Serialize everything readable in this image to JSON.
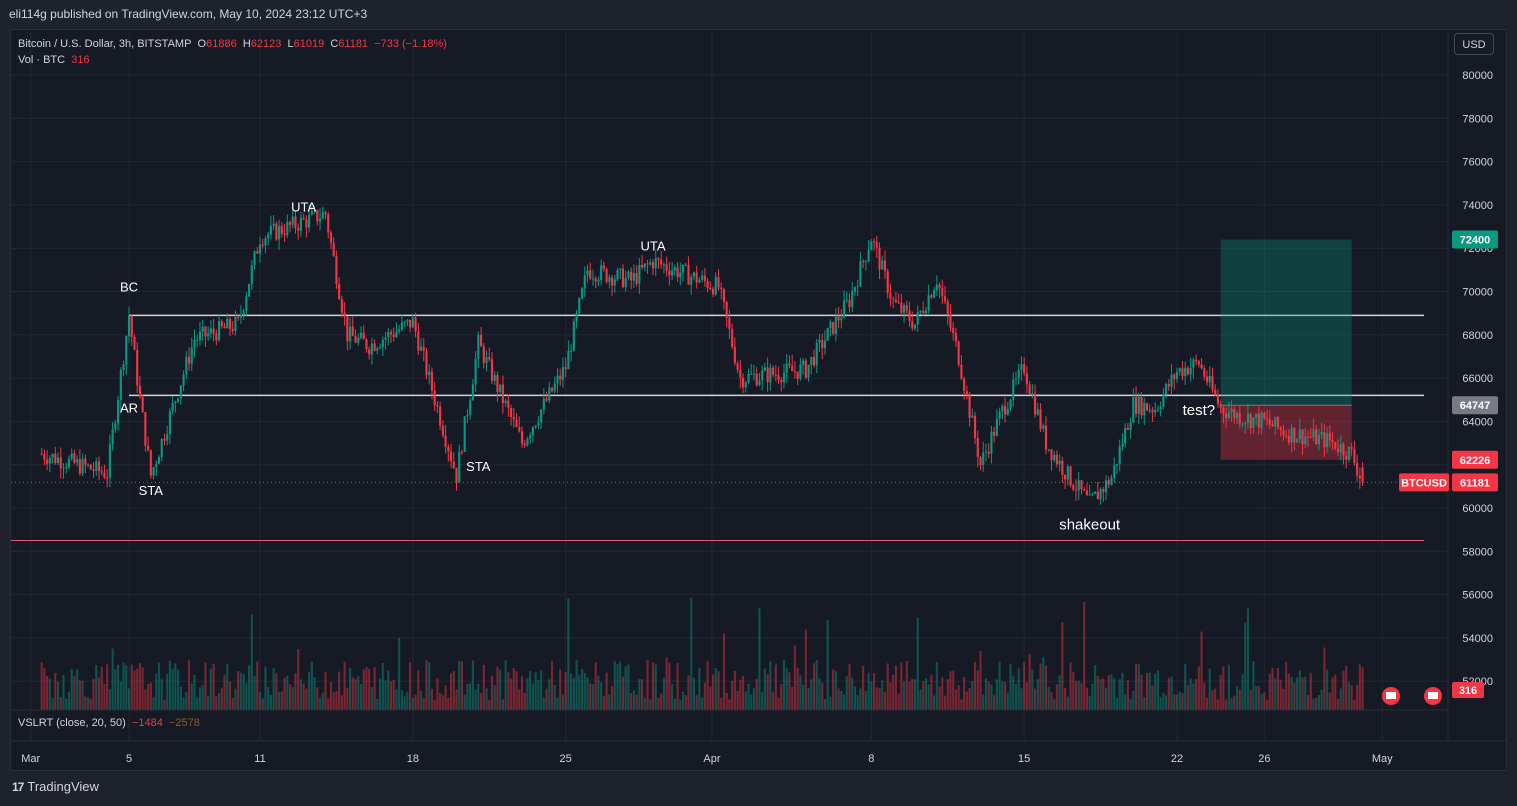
{
  "header": {
    "published": "eli114g published on TradingView.com, May 10, 2024 23:12 UTC+3"
  },
  "legend": {
    "symbol": "Bitcoin / U.S. Dollar, 3h, BITSTAMP",
    "o_label": "O",
    "o_value": "61886",
    "h_label": "H",
    "h_value": "62123",
    "l_label": "L",
    "l_value": "61019",
    "c_label": "C",
    "c_value": "61181",
    "change": "−733 (−1.18%)",
    "vol_label": "Vol · BTC",
    "vol_value": "316"
  },
  "indicator": {
    "name": "VSLRT (close, 20, 50)",
    "v1": "−1484",
    "v2": "−2578"
  },
  "currency_button": "USD",
  "footer": {
    "brand": "TradingView",
    "logo": "17"
  },
  "price_tags": [
    {
      "value": "72400",
      "color": "#089981"
    },
    {
      "value": "64747",
      "color": "#787b86"
    },
    {
      "value": "62226",
      "color": "#f23645"
    },
    {
      "value": "61181",
      "color": "#f23645",
      "symbol": "BTCUSD"
    }
  ],
  "volume_tag": "316",
  "colors": {
    "up": "#089981",
    "down": "#f23645",
    "background": "#161a25",
    "level": "#d1d4dc",
    "support": "#e8537a"
  },
  "chart_data": {
    "type": "candlestick",
    "interval": "3h",
    "y_ticks": [
      52000,
      54000,
      56000,
      58000,
      60000,
      62000,
      64000,
      66000,
      68000,
      70000,
      72000,
      74000,
      76000,
      78000,
      80000
    ],
    "x_ticks": [
      "Mar",
      "5",
      "11",
      "18",
      "25",
      "Apr",
      "8",
      "15",
      "22",
      "26",
      "May"
    ],
    "key_points": [
      {
        "date": "Mar 1",
        "price": 62500
      },
      {
        "date": "Mar 4",
        "price": 61600
      },
      {
        "date": "Mar 5",
        "price": 68900
      },
      {
        "date": "Mar 5",
        "price": 65000
      },
      {
        "date": "Mar 6",
        "price": 61500
      },
      {
        "date": "Mar 8",
        "price": 67800
      },
      {
        "date": "Mar 10",
        "price": 68500
      },
      {
        "date": "Mar 11",
        "price": 72500
      },
      {
        "date": "Mar 14",
        "price": 73600
      },
      {
        "date": "Mar 15",
        "price": 68000
      },
      {
        "date": "Mar 16",
        "price": 67500
      },
      {
        "date": "Mar 18",
        "price": 68600
      },
      {
        "date": "Mar 20",
        "price": 61500
      },
      {
        "date": "Mar 21",
        "price": 67600
      },
      {
        "date": "Mar 23",
        "price": 63000
      },
      {
        "date": "Mar 25",
        "price": 66500
      },
      {
        "date": "Mar 26",
        "price": 71000
      },
      {
        "date": "Mar 28",
        "price": 70500
      },
      {
        "date": "Mar 29",
        "price": 71400
      },
      {
        "date": "Apr 1",
        "price": 70200
      },
      {
        "date": "Apr 2",
        "price": 66000
      },
      {
        "date": "Apr 5",
        "price": 66400
      },
      {
        "date": "Apr 6",
        "price": 68000
      },
      {
        "date": "Apr 7",
        "price": 69600
      },
      {
        "date": "Apr 8",
        "price": 72500
      },
      {
        "date": "Apr 9",
        "price": 69500
      },
      {
        "date": "Apr 10",
        "price": 68500
      },
      {
        "date": "Apr 11",
        "price": 70600
      },
      {
        "date": "Apr 12",
        "price": 67000
      },
      {
        "date": "Apr 13",
        "price": 62000
      },
      {
        "date": "Apr 14",
        "price": 64500
      },
      {
        "date": "Apr 15",
        "price": 66500
      },
      {
        "date": "Apr 16",
        "price": 63000
      },
      {
        "date": "Apr 17",
        "price": 61500
      },
      {
        "date": "Apr 18",
        "price": 60200
      },
      {
        "date": "Apr 19",
        "price": 61400
      },
      {
        "date": "Apr 20",
        "price": 64800
      },
      {
        "date": "Apr 21",
        "price": 64600
      },
      {
        "date": "Apr 22",
        "price": 66300
      },
      {
        "date": "Apr 23",
        "price": 66700
      },
      {
        "date": "Apr 24",
        "price": 64600
      },
      {
        "date": "Apr 25",
        "price": 64200
      },
      {
        "date": "Apr 26",
        "price": 64000
      },
      {
        "date": "Apr 27",
        "price": 63500
      },
      {
        "date": "Apr 28",
        "price": 63300
      },
      {
        "date": "Apr 29",
        "price": 63100
      },
      {
        "date": "Apr 30",
        "price": 62500
      },
      {
        "date": "Apr 30",
        "price": 61181
      }
    ],
    "horizontal_levels": [
      {
        "price": 68900,
        "color": "#d1d4dc"
      },
      {
        "price": 65200,
        "color": "#d1d4dc"
      },
      {
        "price": 58500,
        "color": "#e8537a"
      }
    ],
    "last_price": 61181,
    "position_box": {
      "entry": 64747,
      "target": 72400,
      "stop": 62226,
      "start": "Apr 24",
      "end": "Apr 30"
    },
    "annotations": [
      {
        "text": "BC",
        "date": "Mar 5",
        "price": 70000
      },
      {
        "text": "AR",
        "date": "Mar 5",
        "price": 64400
      },
      {
        "text": "STA",
        "date": "Mar 6",
        "price": 60600
      },
      {
        "text": "UTA",
        "date": "Mar 13",
        "price": 73700
      },
      {
        "text": "STA",
        "date": "Mar 21",
        "price": 61700
      },
      {
        "text": "UTA",
        "date": "Mar 29",
        "price": 71900
      },
      {
        "text": "shakeout",
        "date": "Apr 18",
        "price": 59000
      },
      {
        "text": "test?",
        "date": "Apr 23",
        "price": 64300
      }
    ]
  }
}
